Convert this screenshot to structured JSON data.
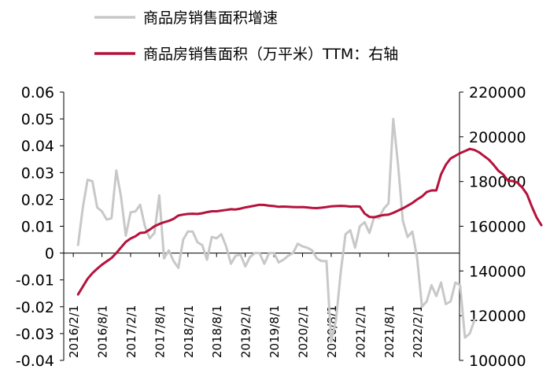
{
  "chart_data": {
    "type": "line",
    "legend_position": "top-left",
    "grid": false,
    "series": [
      {
        "name": "商品房销售面积增速",
        "axis": "left",
        "color": "#c8c8c8",
        "x_start": "2016-03",
        "values": [
          0.003,
          0.017,
          0.0273,
          0.0268,
          0.017,
          0.0155,
          0.0125,
          0.013,
          0.0308,
          0.021,
          0.0065,
          0.0152,
          0.0155,
          0.018,
          0.01,
          0.0055,
          0.0075,
          0.0215,
          -0.002,
          0.001,
          -0.003,
          -0.0055,
          0.005,
          0.008,
          0.008,
          0.004,
          0.003,
          -0.0025,
          0.006,
          0.0055,
          0.007,
          0.0025,
          -0.004,
          -0.001,
          -0.0005,
          -0.005,
          -0.0015,
          0.0,
          0.0,
          -0.004,
          0.0,
          0.0,
          -0.0035,
          -0.0025,
          -0.001,
          0.0,
          0.0035,
          0.0025,
          0.002,
          0.001,
          -0.002,
          -0.003,
          -0.003,
          -0.033,
          -0.025,
          -0.007,
          0.007,
          0.0085,
          0.002,
          0.01,
          0.0115,
          0.0075,
          0.0135,
          0.013,
          0.0165,
          0.0185,
          0.05,
          0.033,
          0.012,
          0.006,
          0.008,
          -0.002,
          -0.02,
          -0.018,
          -0.012,
          -0.016,
          -0.011,
          -0.019,
          -0.018,
          -0.011,
          -0.012,
          -0.0315,
          -0.03,
          -0.025
        ]
      },
      {
        "name": "商品房销售面积（万平米）TTM：右轴",
        "axis": "right",
        "color": "#b5123c",
        "x_start": "2016-03",
        "values": [
          129500,
          133000,
          136500,
          139000,
          141000,
          142800,
          144300,
          145800,
          148000,
          150500,
          153000,
          154500,
          155500,
          157000,
          157200,
          158500,
          160000,
          161000,
          161800,
          162400,
          163300,
          164800,
          165200,
          165500,
          165600,
          165500,
          165800,
          166300,
          166700,
          166700,
          167000,
          167300,
          167600,
          167500,
          167900,
          168400,
          168800,
          169200,
          169600,
          169500,
          169200,
          169000,
          168700,
          168800,
          168700,
          168600,
          168500,
          168600,
          168400,
          168200,
          168100,
          168300,
          168600,
          168900,
          169000,
          169100,
          169000,
          168800,
          168900,
          168800,
          165700,
          164200,
          164000,
          164600,
          165000,
          165200,
          166000,
          167000,
          168000,
          169200,
          170400,
          172000,
          173300,
          175300,
          176000,
          176000,
          183200,
          187500,
          190300,
          191500,
          192700,
          193600,
          194600,
          194100,
          193000,
          191400,
          189800,
          187500,
          184800,
          183200,
          180400,
          180200,
          179500,
          177300,
          174300,
          168800,
          164000,
          160500
        ]
      }
    ],
    "x_ticks": [
      "2016/2/1",
      "2016/8/1",
      "2017/2/1",
      "2017/8/1",
      "2018/2/1",
      "2018/8/1",
      "2019/2/1",
      "2019/8/1",
      "2020/2/1",
      "2020/8/1",
      "2021/2/1",
      "2021/8/1",
      "2022/2/1"
    ],
    "y_left": {
      "min": -0.04,
      "max": 0.06,
      "ticks": [
        "0.06",
        "0.05",
        "0.04",
        "0.03",
        "0.02",
        "0.01",
        "0",
        "-0.01",
        "-0.02",
        "-0.03",
        "-0.04"
      ]
    },
    "y_right": {
      "min": 100000,
      "max": 220000,
      "ticks": [
        "220000",
        "200000",
        "180000",
        "160000",
        "140000",
        "120000",
        "100000"
      ]
    }
  }
}
